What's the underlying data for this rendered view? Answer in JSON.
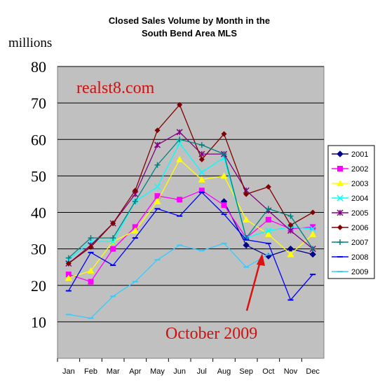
{
  "chart_data": {
    "type": "line",
    "title_line1": "Closed Sales Volume by Month in the",
    "title_line2": "South Bend Area MLS",
    "ylabel": "millions",
    "ylim": [
      0,
      80
    ],
    "yticks": [
      "10",
      "20",
      "30",
      "40",
      "50",
      "60",
      "70",
      "80"
    ],
    "categories": [
      "Jan",
      "Feb",
      "Mar",
      "Apr",
      "May",
      "Jun",
      "Jul",
      "Aug",
      "Sep",
      "Oct",
      "Nov",
      "Dec"
    ],
    "grid": true,
    "legend_position": "right",
    "watermark": "realst8.com",
    "annotation": "October 2009",
    "series": [
      {
        "name": "2001",
        "color": "#00008b",
        "marker": "diamond",
        "values": [
          null,
          null,
          null,
          null,
          null,
          null,
          null,
          43,
          31,
          28,
          30,
          28.5
        ]
      },
      {
        "name": "2002",
        "color": "#ff00ff",
        "marker": "square",
        "values": [
          23,
          21,
          30,
          36,
          44.5,
          43.5,
          46,
          42,
          33,
          38,
          35.5,
          36
        ]
      },
      {
        "name": "2003",
        "color": "#ffff00",
        "marker": "triangle",
        "values": [
          22,
          24,
          32,
          35,
          43,
          54.5,
          49,
          50,
          38,
          34,
          28.5,
          34
        ]
      },
      {
        "name": "2004",
        "color": "#00ffff",
        "marker": "x",
        "values": [
          27,
          32,
          32,
          43,
          47,
          59,
          51,
          55,
          33,
          35,
          36,
          35.5
        ]
      },
      {
        "name": "2005",
        "color": "#800080",
        "marker": "star",
        "values": [
          26,
          31,
          37,
          45,
          58.5,
          62,
          56,
          56,
          46,
          40.5,
          35,
          30
        ]
      },
      {
        "name": "2006",
        "color": "#800000",
        "marker": "circle",
        "values": [
          26,
          30.5,
          37,
          46,
          62.5,
          69.5,
          54.5,
          61.5,
          45,
          47,
          36.5,
          40
        ]
      },
      {
        "name": "2007",
        "color": "#008080",
        "marker": "plus",
        "values": [
          27.5,
          33,
          33,
          43,
          53,
          60,
          58.5,
          56,
          33,
          41,
          39,
          30
        ]
      },
      {
        "name": "2008",
        "color": "#0000ff",
        "marker": "dash",
        "values": [
          18.5,
          29,
          25.5,
          33,
          41,
          39,
          45.5,
          39.5,
          32.5,
          31.5,
          16,
          23
        ]
      },
      {
        "name": "2009",
        "color": "#33ccff",
        "marker": "dash",
        "values": [
          12,
          11,
          17,
          21,
          27,
          31,
          29.5,
          31.5,
          25,
          28.5,
          null,
          null
        ]
      }
    ]
  }
}
